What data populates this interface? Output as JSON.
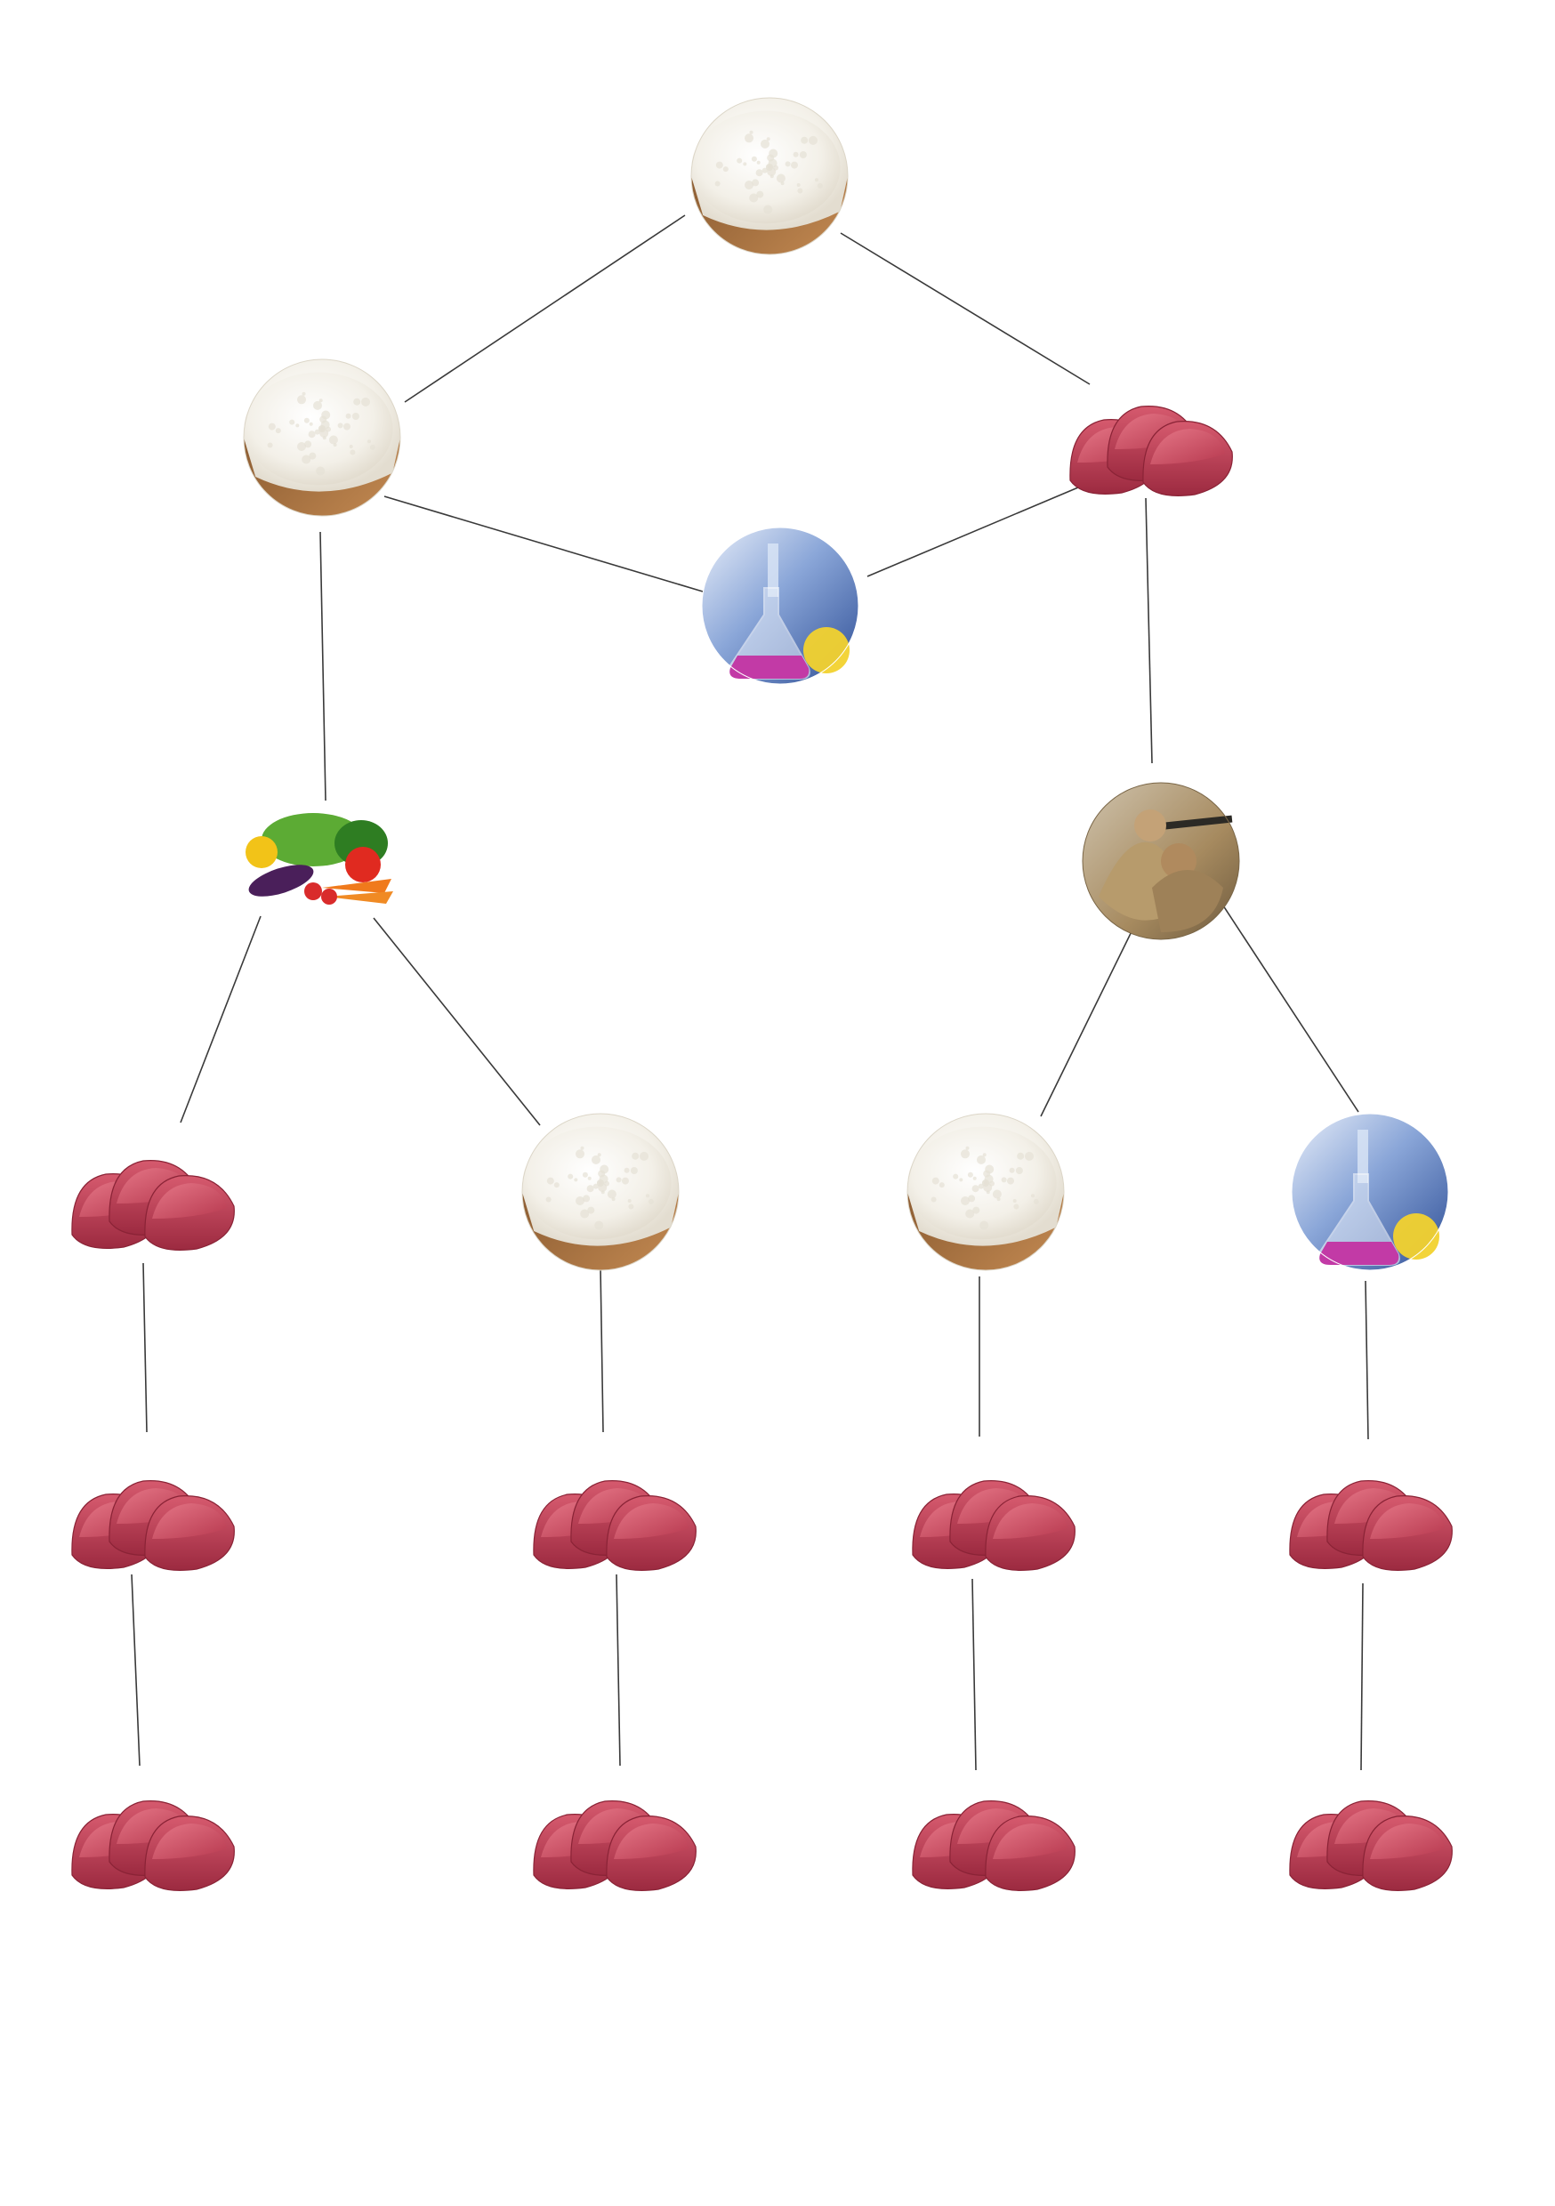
{
  "diagram": {
    "type": "tree",
    "nodes": [
      {
        "id": "n1",
        "icon": "flour-icon"
      },
      {
        "id": "n2",
        "icon": "flour-icon"
      },
      {
        "id": "n3",
        "icon": "meat-icon"
      },
      {
        "id": "n4",
        "icon": "chemistry-flask-icon"
      },
      {
        "id": "n5",
        "icon": "vegetables-icon"
      },
      {
        "id": "n6",
        "icon": "soldiers-icon"
      },
      {
        "id": "n7",
        "icon": "meat-icon"
      },
      {
        "id": "n8",
        "icon": "flour-icon"
      },
      {
        "id": "n9",
        "icon": "flour-icon"
      },
      {
        "id": "n10",
        "icon": "chemistry-flask-icon"
      },
      {
        "id": "n11",
        "icon": "meat-icon"
      },
      {
        "id": "n12",
        "icon": "meat-icon"
      },
      {
        "id": "n13",
        "icon": "meat-icon"
      },
      {
        "id": "n14",
        "icon": "meat-icon"
      },
      {
        "id": "n15",
        "icon": "meat-icon"
      },
      {
        "id": "n16",
        "icon": "meat-icon"
      },
      {
        "id": "n17",
        "icon": "meat-icon"
      },
      {
        "id": "n18",
        "icon": "meat-icon"
      }
    ],
    "edges": [
      [
        "n1",
        "n2"
      ],
      [
        "n1",
        "n3"
      ],
      [
        "n2",
        "n4"
      ],
      [
        "n3",
        "n4"
      ],
      [
        "n2",
        "n5"
      ],
      [
        "n3",
        "n6"
      ],
      [
        "n5",
        "n7"
      ],
      [
        "n5",
        "n8"
      ],
      [
        "n6",
        "n9"
      ],
      [
        "n6",
        "n10"
      ],
      [
        "n7",
        "n11"
      ],
      [
        "n8",
        "n12"
      ],
      [
        "n9",
        "n13"
      ],
      [
        "n10",
        "n14"
      ],
      [
        "n11",
        "n15"
      ],
      [
        "n12",
        "n16"
      ],
      [
        "n13",
        "n17"
      ],
      [
        "n14",
        "n18"
      ]
    ],
    "colors": {
      "edge": "#3a3a3a",
      "flour": "#f4f2ec",
      "wood": "#a87444",
      "meat": "#b8394f",
      "flask_bg": "#3b5fa8",
      "flask_liquid": "#c23aa6",
      "flask_liquid_2": "#f2d22e",
      "soldier_tan": "#b59a6d",
      "vegetable_green": "#4c9a2a"
    }
  }
}
